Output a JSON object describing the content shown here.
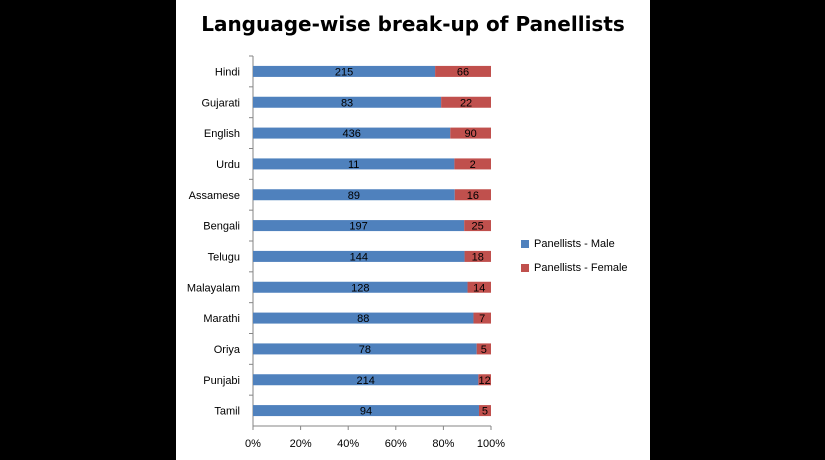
{
  "chart_data": {
    "type": "bar",
    "orientation": "horizontal",
    "stacking": "percent",
    "title": "Language-wise break-up of Panellists",
    "categories": [
      "Hindi",
      "Gujarati",
      "English",
      "Urdu",
      "Assamese",
      "Bengali",
      "Telugu",
      "Malayalam",
      "Marathi",
      "Oriya",
      "Punjabi",
      "Tamil"
    ],
    "series": [
      {
        "name": "Panellists - Male",
        "color": "#4f81bd",
        "values": [
          215,
          83,
          436,
          11,
          89,
          197,
          144,
          128,
          88,
          78,
          214,
          94
        ]
      },
      {
        "name": "Panellists - Female",
        "color": "#c0504d",
        "values": [
          66,
          22,
          90,
          2,
          16,
          25,
          18,
          14,
          7,
          5,
          12,
          5
        ]
      }
    ],
    "x_ticks": [
      "0%",
      "20%",
      "40%",
      "60%",
      "80%",
      "100%"
    ],
    "xlim": [
      0,
      100
    ],
    "grid": false,
    "legend_position": "right"
  }
}
